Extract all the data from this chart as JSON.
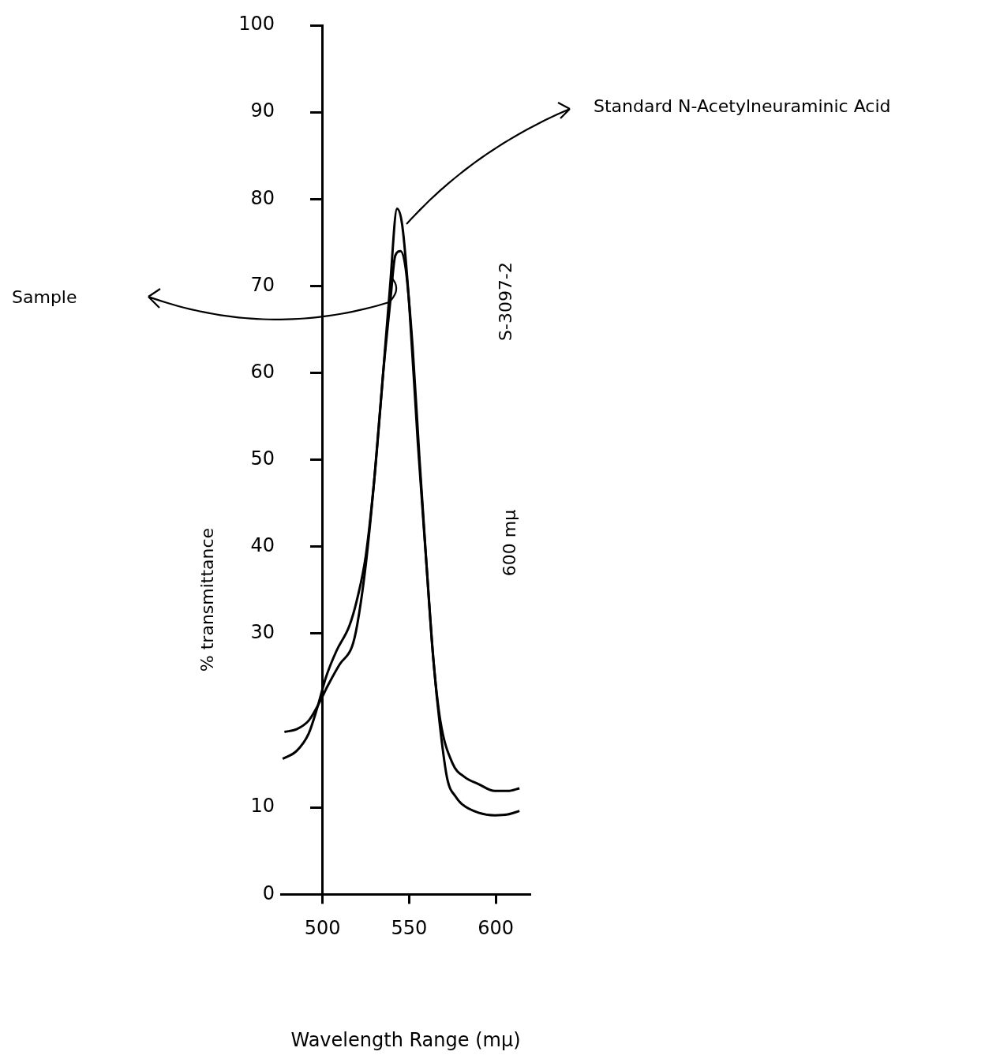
{
  "chart_data": {
    "type": "line",
    "xlabel": "Wavelength Range (mμ)",
    "ylabel": "% transmittance",
    "xlim": [
      476,
      620
    ],
    "xticks": [
      500,
      550,
      600
    ],
    "ylim": [
      0,
      100
    ],
    "yticks": [
      0,
      10,
      30,
      40,
      50,
      60,
      70,
      80,
      90,
      100
    ],
    "grid": false,
    "legend": false,
    "marker": "none",
    "line_style": "solid",
    "annotations": [
      "Standard N-Acetylneuraminic Acid",
      "Sample",
      "S-3097-2",
      "600 mμ"
    ],
    "series": [
      {
        "color": "#000000",
        "x": [
          477,
          485,
          492,
          497,
          502,
          508,
          515.5,
          520,
          525,
          530,
          535,
          539,
          543,
          546,
          550,
          555,
          560,
          564,
          568,
          572,
          577,
          581,
          590,
          599.5,
          607,
          613.7
        ],
        "values": [
          15.6,
          16.5,
          18.5,
          21.5,
          25,
          28,
          30.9,
          34,
          39,
          48,
          60,
          70,
          78.9,
          77,
          68,
          52,
          38,
          27,
          19,
          13.3,
          11.2,
          10.3,
          9.4,
          9.1,
          9.2,
          9.6
        ]
      },
      {
        "color": "#000000",
        "x": [
          478,
          485,
          492,
          498,
          503,
          510,
          517,
          520,
          525,
          530,
          535,
          539,
          542,
          545,
          548,
          552,
          556,
          560,
          564,
          568,
          575,
          582,
          590,
          599.5,
          607,
          613.7
        ],
        "values": [
          18.7,
          19,
          20,
          22,
          24,
          26.5,
          28.5,
          31,
          38,
          48,
          60,
          68,
          73.5,
          74,
          72,
          63,
          50,
          38,
          27,
          20,
          15.1,
          13.5,
          12.7,
          11.9,
          11.9,
          12.2
        ]
      }
    ]
  }
}
